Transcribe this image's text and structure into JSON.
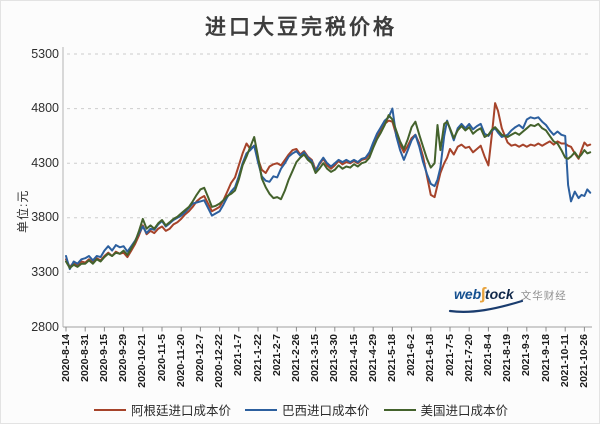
{
  "page": {
    "title": "进口大豆完税价格"
  },
  "axes": {
    "y_unit_label": "单位:元",
    "text_color": "#2e2e2e",
    "grid_color": "#cdcdcd",
    "axis_color": "#b3b3b3",
    "tick_color": "#8a8a8a"
  },
  "watermark": {
    "brand_web": "web",
    "brand_s": "ʃ",
    "brand_tock": "tock",
    "caption": "文华财经",
    "color_blue": "#15508F",
    "color_gold": "#E8A33D",
    "color_dark": "#12294A",
    "color_caption": "#8F8F8F"
  },
  "chart_data": {
    "type": "line",
    "title": "进口大豆完税价格",
    "xlabel": "",
    "ylabel": "单位:元",
    "ylim": [
      2800,
      5300
    ],
    "yticks": [
      5300,
      4800,
      4300,
      3800,
      3300,
      2800
    ],
    "grid": "horizontal-dashed",
    "legend_position": "bottom",
    "x_labels": [
      "2020-8-14",
      "2020-8-31",
      "2020-9-15",
      "2020-9-29",
      "2020-10-21",
      "2020-11-5",
      "2020-11-20",
      "2020-12-7",
      "2020-12-22",
      "2021-1-7",
      "2021-1-22",
      "2021-2-7",
      "2021-2-26",
      "2021-3-15",
      "2021-3-30",
      "2021-4-15",
      "2021-4-29",
      "2021-5-18",
      "2021-6-2",
      "2021-6-18",
      "2021-7-5",
      "2021-7-20",
      "2021-8-4",
      "2021-8-19",
      "2021-9-3",
      "2021-9-18",
      "2021-10-11",
      "2021-10-26"
    ],
    "x_index": [
      0,
      0.2,
      0.4,
      0.6,
      0.8,
      1,
      1.2,
      1.4,
      1.6,
      1.8,
      2,
      2.2,
      2.4,
      2.6,
      2.8,
      3,
      3.2,
      3.4,
      3.6,
      3.8,
      4,
      4.2,
      4.4,
      4.6,
      4.8,
      5,
      5.2,
      5.4,
      5.6,
      5.8,
      6,
      6.2,
      6.4,
      6.6,
      6.8,
      7,
      7.2,
      7.4,
      7.6,
      7.8,
      8,
      8.2,
      8.4,
      8.6,
      8.8,
      9,
      9.2,
      9.4,
      9.6,
      9.8,
      10,
      10.2,
      10.4,
      10.6,
      10.8,
      11,
      11.2,
      11.4,
      11.6,
      11.8,
      12,
      12.2,
      12.4,
      12.6,
      12.8,
      13,
      13.2,
      13.4,
      13.6,
      13.8,
      14,
      14.2,
      14.4,
      14.6,
      14.8,
      15,
      15.2,
      15.4,
      15.6,
      15.8,
      16,
      16.2,
      16.4,
      16.6,
      16.8,
      17,
      17.2,
      17.4,
      17.6,
      17.8,
      18,
      18.2,
      18.4,
      18.6,
      18.8,
      19,
      19.2,
      19.35,
      19.5,
      19.7,
      19.85,
      20,
      20.2,
      20.4,
      20.6,
      20.8,
      21,
      21.2,
      21.4,
      21.6,
      21.8,
      22,
      22.2,
      22.35,
      22.5,
      22.7,
      23,
      23.2,
      23.4,
      23.6,
      23.8,
      24,
      24.2,
      24.4,
      24.6,
      24.8,
      25,
      25.2,
      25.4,
      25.6,
      25.8,
      26,
      26.15,
      26.3,
      26.5,
      26.7,
      26.85,
      27,
      27.15,
      27.3
    ],
    "series": [
      {
        "name": "阿根廷进口成本价",
        "color": "#A6432A",
        "values": [
          3420,
          3350,
          3390,
          3360,
          3400,
          3390,
          3420,
          3390,
          3430,
          3410,
          3450,
          3480,
          3450,
          3490,
          3470,
          3480,
          3440,
          3500,
          3560,
          3640,
          3730,
          3650,
          3680,
          3660,
          3700,
          3720,
          3680,
          3700,
          3740,
          3760,
          3790,
          3830,
          3860,
          3900,
          3950,
          3980,
          4000,
          3930,
          3860,
          3880,
          3900,
          3960,
          4040,
          4120,
          4170,
          4280,
          4390,
          4480,
          4430,
          4460,
          4340,
          4240,
          4210,
          4270,
          4290,
          4300,
          4280,
          4330,
          4380,
          4420,
          4430,
          4380,
          4410,
          4360,
          4330,
          4240,
          4290,
          4340,
          4280,
          4250,
          4280,
          4320,
          4290,
          4310,
          4300,
          4320,
          4300,
          4330,
          4340,
          4380,
          4470,
          4550,
          4610,
          4660,
          4690,
          4680,
          4560,
          4470,
          4400,
          4460,
          4530,
          4560,
          4480,
          4360,
          4180,
          4010,
          3990,
          4100,
          4210,
          4300,
          4350,
          4430,
          4380,
          4450,
          4470,
          4440,
          4450,
          4400,
          4430,
          4460,
          4360,
          4280,
          4590,
          4850,
          4780,
          4620,
          4490,
          4460,
          4470,
          4450,
          4470,
          4450,
          4470,
          4460,
          4480,
          4460,
          4480,
          4500,
          4470,
          4500,
          4480,
          4480,
          4460,
          4450,
          4390,
          4340,
          4420,
          4490,
          4460,
          4470
        ]
      },
      {
        "name": "巴西进口成本价",
        "color": "#2C5F9E",
        "values": [
          3450,
          3330,
          3400,
          3380,
          3420,
          3430,
          3450,
          3410,
          3450,
          3440,
          3500,
          3540,
          3500,
          3550,
          3530,
          3540,
          3490,
          3540,
          3590,
          3660,
          3720,
          3660,
          3700,
          3690,
          3740,
          3770,
          3720,
          3750,
          3780,
          3800,
          3820,
          3850,
          3890,
          3930,
          3940,
          3950,
          3960,
          3890,
          3820,
          3840,
          3860,
          3920,
          3990,
          4040,
          4080,
          4180,
          4300,
          4390,
          4420,
          4460,
          4310,
          4180,
          4140,
          4130,
          4180,
          4170,
          4250,
          4300,
          4360,
          4390,
          4410,
          4370,
          4400,
          4350,
          4320,
          4220,
          4300,
          4350,
          4300,
          4270,
          4300,
          4330,
          4310,
          4330,
          4310,
          4330,
          4310,
          4340,
          4350,
          4400,
          4490,
          4570,
          4630,
          4690,
          4720,
          4800,
          4550,
          4420,
          4330,
          4420,
          4510,
          4560,
          4450,
          4310,
          4200,
          4110,
          4090,
          4150,
          4260,
          4550,
          4690,
          4610,
          4510,
          4620,
          4660,
          4620,
          4660,
          4610,
          4640,
          4660,
          4570,
          4550,
          4600,
          4620,
          4580,
          4540,
          4560,
          4600,
          4630,
          4650,
          4620,
          4700,
          4720,
          4710,
          4720,
          4680,
          4650,
          4600,
          4560,
          4590,
          4560,
          4550,
          4100,
          3950,
          4040,
          3980,
          4010,
          4000,
          4060,
          4030
        ]
      },
      {
        "name": "美国进口成本价",
        "color": "#44622C",
        "values": [
          3400,
          3340,
          3370,
          3350,
          3380,
          3380,
          3410,
          3380,
          3420,
          3400,
          3440,
          3470,
          3450,
          3480,
          3470,
          3500,
          3460,
          3520,
          3580,
          3680,
          3790,
          3700,
          3730,
          3700,
          3750,
          3780,
          3730,
          3760,
          3790,
          3810,
          3840,
          3870,
          3900,
          3950,
          4010,
          4060,
          4075,
          3990,
          3900,
          3910,
          3930,
          3960,
          4000,
          4020,
          4050,
          4150,
          4280,
          4360,
          4450,
          4540,
          4360,
          4160,
          4080,
          4020,
          3980,
          3990,
          3970,
          4050,
          4150,
          4230,
          4310,
          4350,
          4380,
          4330,
          4300,
          4210,
          4250,
          4300,
          4250,
          4220,
          4240,
          4280,
          4250,
          4270,
          4260,
          4290,
          4270,
          4300,
          4310,
          4350,
          4440,
          4520,
          4580,
          4650,
          4740,
          4700,
          4600,
          4500,
          4430,
          4520,
          4630,
          4680,
          4560,
          4450,
          4340,
          4260,
          4300,
          4650,
          4420,
          4660,
          4680,
          4620,
          4530,
          4600,
          4640,
          4600,
          4630,
          4570,
          4600,
          4620,
          4540,
          4560,
          4610,
          4630,
          4600,
          4560,
          4540,
          4560,
          4580,
          4560,
          4590,
          4620,
          4650,
          4640,
          4660,
          4620,
          4600,
          4550,
          4500,
          4480,
          4420,
          4350,
          4340,
          4360,
          4400,
          4350,
          4380,
          4420,
          4390,
          4400
        ]
      }
    ]
  }
}
